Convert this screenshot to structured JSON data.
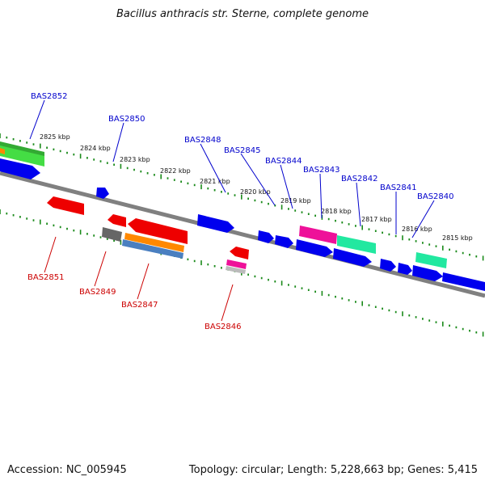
{
  "title": "Bacillus anthracis str. Sterne, complete genome",
  "footer": {
    "accession": "Accession: NC_005945",
    "summary": "Topology: circular; Length: 5,228,663 bp; Genes: 5,415"
  },
  "ruler": {
    "labels": [
      "2825 kbp",
      "2824 kbp",
      "2823 kbp",
      "2822 kbp",
      "2821 kbp",
      "2820 kbp",
      "2819 kbp",
      "2818 kbp",
      "2817 kbp",
      "2816 kbp",
      "2815 kbp"
    ]
  },
  "genes_forward": [
    "BAS2852",
    "BAS2850",
    "BAS2848",
    "BAS2845",
    "BAS2844",
    "BAS2843",
    "BAS2842",
    "BAS2841",
    "BAS2840"
  ],
  "genes_reverse": [
    "BAS2851",
    "BAS2849",
    "BAS2847",
    "BAS2846"
  ],
  "colors": {
    "forward_label": "#0000cc",
    "reverse_label": "#cc0000",
    "backbone": "#808080",
    "ticks": "#1a8a1a",
    "blue": "#0000ee",
    "red": "#ee0000",
    "green": "#33cc33",
    "aqua": "#22e8a0",
    "pink": "#ee1199",
    "orange": "#ff8800",
    "steel": "#4a7fc0",
    "gray": "#666666"
  }
}
